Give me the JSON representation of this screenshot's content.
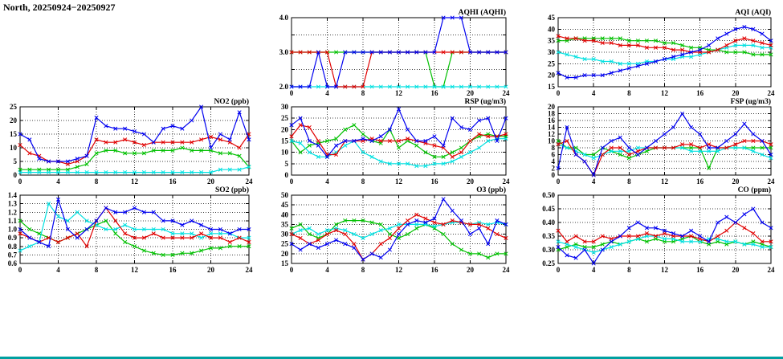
{
  "page": {
    "title": "North, 20250924−20250927"
  },
  "colors": {
    "blue": "#0000f0",
    "red": "#e00000",
    "green": "#00c000",
    "cyan": "#00e0e0"
  },
  "chart_data": [
    {
      "type": "line",
      "title": "AQHI (AQHI)",
      "ylim": [
        2.0,
        4.0
      ],
      "ytick": 0.5,
      "ylabel_every": 2,
      "ydecimals": 1,
      "xlim": [
        0,
        24
      ],
      "x_step": 1,
      "xticks": [
        0,
        4,
        8,
        12,
        16,
        20,
        24
      ],
      "grid": true,
      "legend": "none",
      "series": [
        {
          "name": "green",
          "color": "#00c000",
          "values": [
            3,
            3,
            3,
            3,
            3,
            3,
            3,
            3,
            3,
            3,
            3,
            3,
            3,
            3,
            3,
            3,
            2,
            2,
            3,
            3,
            3,
            3,
            3,
            3,
            3
          ]
        },
        {
          "name": "cyan",
          "color": "#00e0e0",
          "values": [
            2,
            2,
            2,
            2,
            2,
            2,
            2,
            2,
            2,
            2,
            2,
            2,
            2,
            2,
            2,
            2,
            2,
            2,
            2,
            2,
            2,
            2,
            2,
            2,
            2
          ]
        },
        {
          "name": "red",
          "color": "#e00000",
          "values": [
            3,
            3,
            3,
            3,
            3,
            2,
            2,
            2,
            2,
            3,
            3,
            3,
            3,
            3,
            3,
            3,
            3,
            3,
            3,
            3,
            3,
            3,
            3,
            3,
            3
          ]
        },
        {
          "name": "blue",
          "color": "#0000f0",
          "values": [
            2,
            2,
            2,
            3,
            2,
            2,
            3,
            3,
            3,
            3,
            3,
            3,
            3,
            3,
            3,
            3,
            3,
            4,
            4,
            4,
            3,
            3,
            3,
            3,
            3
          ]
        }
      ]
    },
    {
      "type": "line",
      "title": "AQI (AQI)",
      "ylim": [
        15,
        45
      ],
      "ytick": 5,
      "ylabel_every": 1,
      "ydecimals": 0,
      "xlim": [
        0,
        24
      ],
      "x_step": 1,
      "xticks": [
        0,
        4,
        8,
        12,
        16,
        20,
        24
      ],
      "grid": true,
      "legend": "none",
      "series": [
        {
          "name": "green",
          "color": "#00c000",
          "values": [
            35,
            35,
            36,
            36,
            36,
            36,
            36,
            36,
            35,
            35,
            35,
            35,
            34,
            34,
            33,
            32,
            32,
            31,
            31,
            30,
            30,
            30,
            29,
            29,
            29
          ]
        },
        {
          "name": "cyan",
          "color": "#00e0e0",
          "values": [
            30,
            29,
            28,
            27,
            27,
            26,
            26,
            25,
            25,
            25,
            26,
            26,
            27,
            27,
            28,
            28,
            29,
            30,
            31,
            32,
            33,
            33,
            33,
            32,
            32
          ]
        },
        {
          "name": "red",
          "color": "#e00000",
          "values": [
            37,
            36,
            36,
            35,
            35,
            34,
            34,
            33,
            33,
            33,
            32,
            32,
            32,
            31,
            31,
            30,
            30,
            30,
            31,
            33,
            35,
            36,
            35,
            34,
            33
          ]
        },
        {
          "name": "blue",
          "color": "#0000f0",
          "values": [
            21,
            19,
            19,
            20,
            20,
            20,
            21,
            22,
            23,
            24,
            25,
            26,
            27,
            28,
            29,
            30,
            31,
            33,
            36,
            38,
            40,
            41,
            40,
            38,
            35
          ]
        }
      ]
    },
    {
      "type": "line",
      "title": "NO2 (ppb)",
      "ylim": [
        0,
        25
      ],
      "ytick": 5,
      "ylabel_every": 1,
      "ydecimals": 0,
      "xlim": [
        0,
        24
      ],
      "x_step": 1,
      "xticks": [
        0,
        4,
        8,
        12,
        16,
        20,
        24
      ],
      "grid": true,
      "legend": "none",
      "series": [
        {
          "name": "green",
          "color": "#00c000",
          "values": [
            2,
            2,
            2,
            2,
            2,
            2,
            3,
            4,
            8,
            9,
            9,
            8,
            8,
            8,
            9,
            9,
            9,
            10,
            9,
            9,
            9,
            8,
            8,
            7,
            3
          ]
        },
        {
          "name": "cyan",
          "color": "#00e0e0",
          "values": [
            1,
            1,
            1,
            1,
            1,
            1,
            1,
            1,
            1,
            1,
            1,
            1,
            1,
            1,
            1,
            1,
            1,
            1,
            1,
            1,
            1,
            2,
            2,
            2,
            3
          ]
        },
        {
          "name": "red",
          "color": "#e00000",
          "values": [
            11,
            8,
            7,
            5,
            5,
            4,
            5,
            7,
            13,
            12,
            12,
            13,
            12,
            11,
            12,
            12,
            12,
            12,
            12,
            13,
            14,
            13,
            12,
            10,
            15
          ]
        },
        {
          "name": "blue",
          "color": "#0000f0",
          "values": [
            15,
            13,
            6,
            5,
            5,
            5,
            6,
            7,
            21,
            18,
            17,
            17,
            16,
            15,
            12,
            17,
            18,
            17,
            20,
            25,
            10,
            15,
            13,
            23,
            13
          ]
        }
      ]
    },
    {
      "type": "line",
      "title": "RSP (ug/m3)",
      "ylim": [
        0,
        30
      ],
      "ytick": 5,
      "ylabel_every": 1,
      "ydecimals": 0,
      "xlim": [
        0,
        24
      ],
      "x_step": 1,
      "xticks": [
        0,
        4,
        8,
        12,
        16,
        20,
        24
      ],
      "grid": true,
      "legend": "none",
      "series": [
        {
          "name": "green",
          "color": "#00c000",
          "values": [
            15,
            10,
            13,
            14,
            15,
            16,
            20,
            22,
            18,
            15,
            14,
            20,
            12,
            15,
            13,
            10,
            8,
            8,
            10,
            12,
            15,
            17,
            18,
            17,
            17
          ]
        },
        {
          "name": "cyan",
          "color": "#00e0e0",
          "values": [
            15,
            14,
            10,
            8,
            8,
            10,
            13,
            15,
            10,
            8,
            6,
            5,
            5,
            5,
            4,
            4,
            5,
            5,
            6,
            8,
            10,
            12,
            15,
            16,
            16
          ]
        },
        {
          "name": "red",
          "color": "#e00000",
          "values": [
            17,
            22,
            21,
            15,
            9,
            9,
            15,
            15,
            15,
            16,
            15,
            15,
            15,
            16,
            15,
            14,
            13,
            12,
            8,
            10,
            15,
            18,
            17,
            17,
            18
          ]
        },
        {
          "name": "blue",
          "color": "#0000f0",
          "values": [
            22,
            25,
            15,
            13,
            8,
            13,
            15,
            15,
            16,
            15,
            17,
            20,
            29,
            20,
            15,
            15,
            17,
            13,
            25,
            21,
            20,
            24,
            25,
            15,
            25
          ]
        }
      ]
    },
    {
      "type": "line",
      "title": "FSP (ug/m3)",
      "ylim": [
        0,
        20
      ],
      "ytick": 2,
      "ylabel_every": 1,
      "ydecimals": 0,
      "xlim": [
        0,
        24
      ],
      "x_step": 1,
      "xticks": [
        0,
        4,
        8,
        12,
        16,
        20,
        24
      ],
      "grid": true,
      "legend": "none",
      "series": [
        {
          "name": "green",
          "color": "#00c000",
          "values": [
            10,
            8,
            8,
            6,
            6,
            8,
            7,
            6,
            5,
            6,
            7,
            8,
            8,
            8,
            8,
            8,
            8,
            2,
            8,
            8,
            8,
            8,
            8,
            8,
            8
          ]
        },
        {
          "name": "cyan",
          "color": "#00e0e0",
          "values": [
            9,
            8,
            7,
            6,
            5,
            6,
            7,
            7,
            7,
            8,
            8,
            8,
            8,
            8,
            8,
            7,
            7,
            7,
            7,
            8,
            8,
            8,
            7,
            6,
            5
          ]
        },
        {
          "name": "red",
          "color": "#e00000",
          "values": [
            9,
            10,
            6,
            4,
            0,
            6,
            8,
            8,
            6,
            7,
            8,
            8,
            8,
            8,
            9,
            9,
            8,
            9,
            8,
            8,
            9,
            10,
            10,
            10,
            9
          ]
        },
        {
          "name": "blue",
          "color": "#0000f0",
          "values": [
            2,
            14,
            6,
            4,
            0,
            8,
            10,
            11,
            8,
            6,
            8,
            10,
            12,
            14,
            18,
            14,
            12,
            8,
            8,
            10,
            12,
            15,
            12,
            10,
            6
          ]
        }
      ]
    },
    {
      "type": "line",
      "title": "SO2 (ppb)",
      "ylim": [
        0.6,
        1.4
      ],
      "ytick": 0.1,
      "ylabel_every": 1,
      "ydecimals": 1,
      "xlim": [
        0,
        24
      ],
      "x_step": 1,
      "xticks": [
        0,
        4,
        8,
        12,
        16,
        20,
        24
      ],
      "grid": true,
      "legend": "none",
      "series": [
        {
          "name": "green",
          "color": "#00c000",
          "values": [
            1.1,
            1.0,
            0.95,
            0.9,
            0.85,
            0.9,
            0.95,
            1.0,
            1.05,
            1.1,
            0.95,
            0.85,
            0.8,
            0.75,
            0.72,
            0.7,
            0.7,
            0.72,
            0.72,
            0.75,
            0.78,
            0.78,
            0.8,
            0.8,
            0.8
          ]
        },
        {
          "name": "cyan",
          "color": "#00e0e0",
          "values": [
            0.75,
            0.8,
            0.85,
            1.3,
            1.15,
            1.1,
            1.2,
            1.1,
            1.05,
            1.0,
            1.0,
            1.05,
            1.0,
            1.0,
            1.0,
            1.0,
            0.95,
            0.95,
            0.95,
            0.9,
            0.95,
            0.95,
            0.95,
            0.9,
            0.9
          ]
        },
        {
          "name": "red",
          "color": "#e00000",
          "values": [
            0.95,
            0.9,
            0.85,
            0.9,
            0.85,
            0.9,
            0.95,
            0.8,
            1.1,
            1.25,
            1.1,
            0.95,
            0.9,
            0.9,
            0.95,
            0.9,
            0.9,
            0.9,
            0.9,
            0.95,
            0.9,
            0.9,
            0.85,
            0.9,
            0.85
          ]
        },
        {
          "name": "blue",
          "color": "#0000f0",
          "values": [
            1.0,
            0.9,
            0.85,
            0.8,
            1.35,
            1.0,
            0.9,
            1.0,
            1.1,
            1.25,
            1.2,
            1.2,
            1.25,
            1.2,
            1.2,
            1.1,
            1.1,
            1.05,
            1.1,
            1.05,
            1.0,
            1.0,
            0.95,
            1.0,
            1.0
          ]
        }
      ]
    },
    {
      "type": "line",
      "title": "O3 (ppb)",
      "ylim": [
        15,
        50
      ],
      "ytick": 5,
      "ylabel_every": 1,
      "ydecimals": 0,
      "xlim": [
        0,
        24
      ],
      "x_step": 1,
      "xticks": [
        0,
        4,
        8,
        12,
        16,
        20,
        24
      ],
      "grid": true,
      "legend": "none",
      "series": [
        {
          "name": "green",
          "color": "#00c000",
          "values": [
            33,
            35,
            30,
            28,
            30,
            35,
            37,
            37,
            37,
            36,
            35,
            30,
            28,
            30,
            33,
            35,
            33,
            30,
            25,
            22,
            20,
            20,
            18,
            20,
            20
          ]
        },
        {
          "name": "cyan",
          "color": "#00e0e0",
          "values": [
            30,
            32,
            33,
            30,
            32,
            33,
            32,
            30,
            28,
            30,
            32,
            33,
            35,
            35,
            35,
            35,
            34,
            35,
            36,
            36,
            35,
            36,
            35,
            36,
            35
          ]
        },
        {
          "name": "red",
          "color": "#e00000",
          "values": [
            30,
            28,
            25,
            27,
            30,
            32,
            30,
            25,
            17,
            20,
            25,
            28,
            33,
            37,
            40,
            38,
            36,
            35,
            37,
            36,
            35,
            35,
            33,
            30,
            28
          ]
        },
        {
          "name": "blue",
          "color": "#0000f0",
          "values": [
            25,
            22,
            25,
            23,
            25,
            27,
            25,
            23,
            17,
            20,
            18,
            22,
            30,
            35,
            37,
            36,
            38,
            48,
            42,
            37,
            30,
            33,
            25,
            37,
            35
          ]
        }
      ]
    },
    {
      "type": "line",
      "title": "CO (ppm)",
      "ylim": [
        0.25,
        0.5
      ],
      "ytick": 0.05,
      "ylabel_every": 1,
      "ydecimals": 2,
      "xlim": [
        0,
        24
      ],
      "x_step": 1,
      "xticks": [
        0,
        4,
        8,
        12,
        16,
        20,
        24
      ],
      "grid": true,
      "legend": "none",
      "series": [
        {
          "name": "green",
          "color": "#00c000",
          "values": [
            0.3,
            0.31,
            0.32,
            0.31,
            0.31,
            0.32,
            0.33,
            0.32,
            0.33,
            0.34,
            0.33,
            0.34,
            0.33,
            0.33,
            0.34,
            0.35,
            0.33,
            0.32,
            0.33,
            0.32,
            0.33,
            0.32,
            0.33,
            0.32,
            0.31
          ]
        },
        {
          "name": "cyan",
          "color": "#00e0e0",
          "values": [
            0.33,
            0.32,
            0.31,
            0.3,
            0.29,
            0.3,
            0.31,
            0.32,
            0.33,
            0.34,
            0.35,
            0.35,
            0.34,
            0.34,
            0.33,
            0.33,
            0.33,
            0.34,
            0.34,
            0.33,
            0.33,
            0.32,
            0.32,
            0.31,
            0.31
          ]
        },
        {
          "name": "red",
          "color": "#e00000",
          "values": [
            0.37,
            0.33,
            0.35,
            0.33,
            0.33,
            0.35,
            0.34,
            0.35,
            0.35,
            0.35,
            0.36,
            0.35,
            0.36,
            0.35,
            0.35,
            0.35,
            0.34,
            0.33,
            0.35,
            0.37,
            0.4,
            0.38,
            0.36,
            0.33,
            0.33
          ]
        },
        {
          "name": "blue",
          "color": "#0000f0",
          "values": [
            0.31,
            0.28,
            0.27,
            0.3,
            0.25,
            0.3,
            0.33,
            0.35,
            0.38,
            0.4,
            0.38,
            0.38,
            0.37,
            0.36,
            0.35,
            0.37,
            0.35,
            0.33,
            0.4,
            0.42,
            0.4,
            0.43,
            0.45,
            0.4,
            0.38
          ]
        }
      ]
    }
  ]
}
